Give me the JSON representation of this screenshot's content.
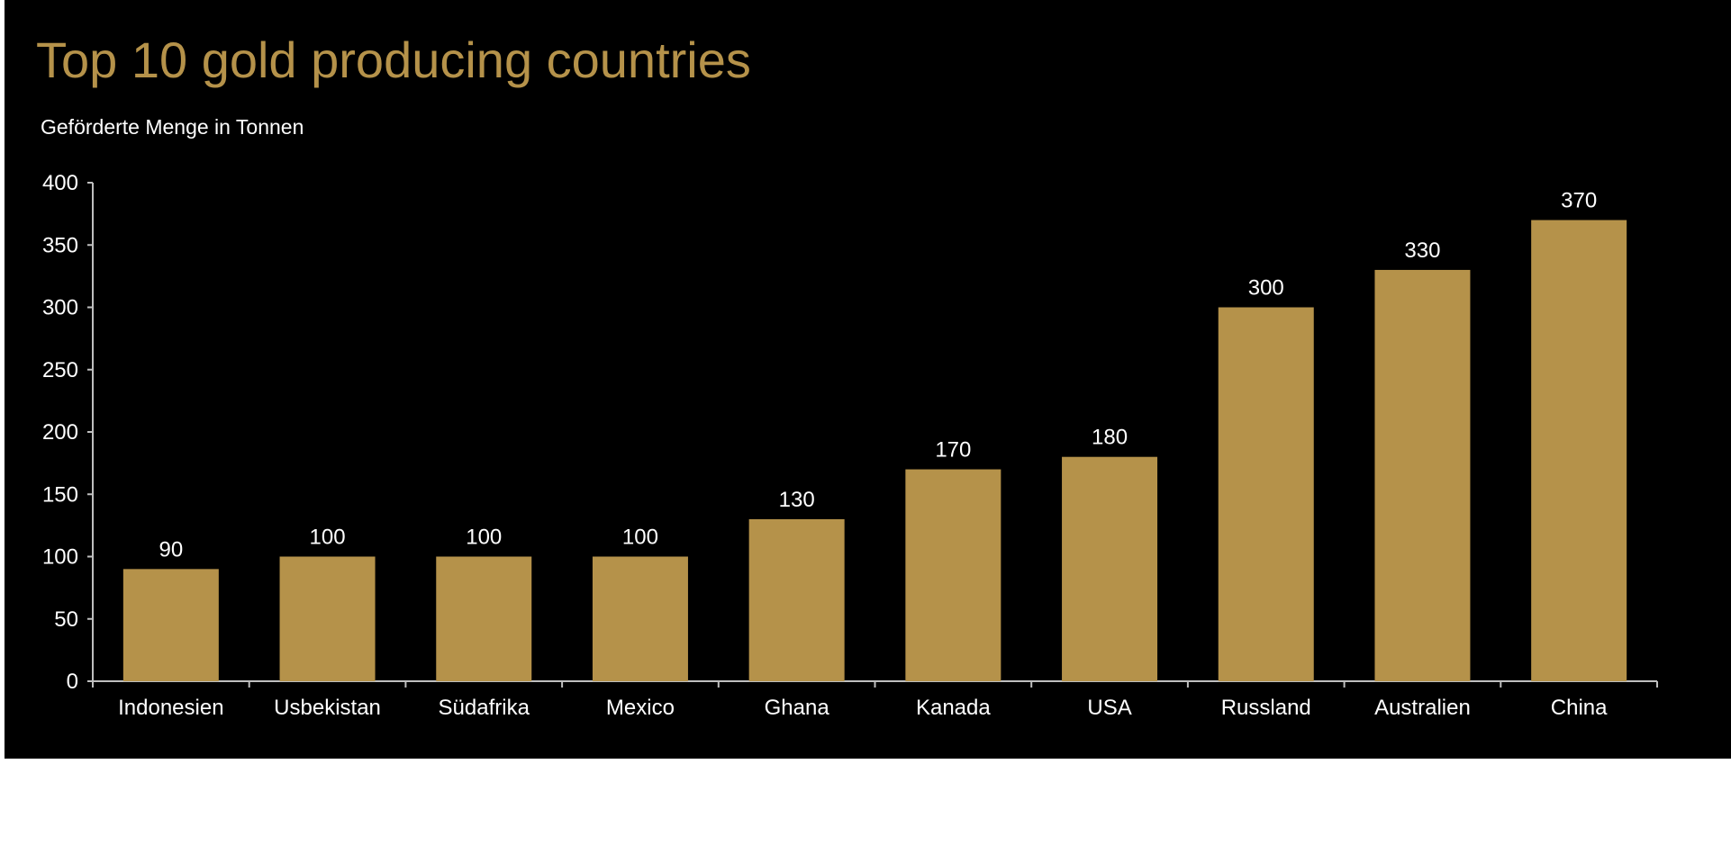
{
  "chart_data": {
    "type": "bar",
    "title": "Top 10 gold producing countries",
    "subtitle": "Geförderte Menge in Tonnen",
    "xlabel": "",
    "ylabel": "",
    "categories": [
      "Indonesien",
      "Usbekistan",
      "Südafrika",
      "Mexico",
      "Ghana",
      "Kanada",
      "USA",
      "Russland",
      "Australien",
      "China"
    ],
    "values": [
      90,
      100,
      100,
      100,
      130,
      170,
      180,
      300,
      330,
      370
    ],
    "ylim": [
      0,
      400
    ],
    "yticks": [
      "0",
      "50",
      "100",
      "150",
      "200",
      "250",
      "300",
      "350",
      "400"
    ],
    "data_labels": true,
    "grid": false,
    "legend": "none"
  },
  "colors": {
    "background": "#000000",
    "page": "#ffffff",
    "bar": "#b5924a",
    "title": "#b5924a",
    "text": "#ffffff",
    "axis": "#bfbfbf"
  }
}
